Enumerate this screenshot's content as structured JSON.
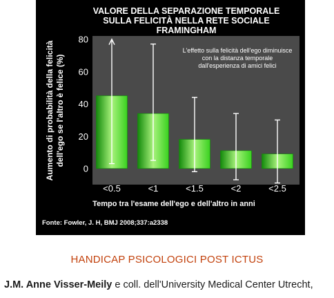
{
  "chart_data": {
    "type": "bar",
    "title_lines": [
      "VALORE DELLA SEPARAZIONE TEMPORALE",
      "SULLA FELICITÀ NELLA RETE SOCIALE",
      "FRAMINGHAM"
    ],
    "ylabel_lines": [
      "Aumento di probabilità della felicità",
      "dell'ego se l'altro è felice (%)"
    ],
    "xlabel": "Tempo tra l'esame dell'ego e dell'altro in anni",
    "categories": [
      "<0.5",
      "<1",
      "<1.5",
      "<2",
      "<2.5"
    ],
    "values": [
      45,
      34,
      18,
      11,
      9
    ],
    "error_low": [
      3,
      5,
      -2,
      -7,
      -9
    ],
    "error_high": [
      80,
      77,
      44,
      34,
      30
    ],
    "first_error_arrow": true,
    "ylim": [
      -10,
      82
    ],
    "yticks": [
      0,
      20,
      40,
      60,
      80
    ],
    "grid": false,
    "annotation_lines": [
      "L'effetto sulla felicità dell'ego diminuisce",
      "con la distanza temporale",
      "dall'esperienza  di amici felici"
    ],
    "source": "Fonte: Fowler, J. H, BMJ 2008;337:a2338",
    "colors": {
      "background": "#000000",
      "plot_area": "#4a4a4a",
      "bar_light": "#a8f27c",
      "bar_mid": "#39d11f",
      "bar_dark": "#138a0b",
      "whisker": "#ffffff",
      "text": "#ffffff"
    }
  },
  "section_heading": "HANDICAP PSICOLOGICI POST ICTUS",
  "caption": {
    "author": "J.M. Anne Visser-Meily",
    "rest": " e coll. dell'University Medical Center Utrecht,"
  }
}
